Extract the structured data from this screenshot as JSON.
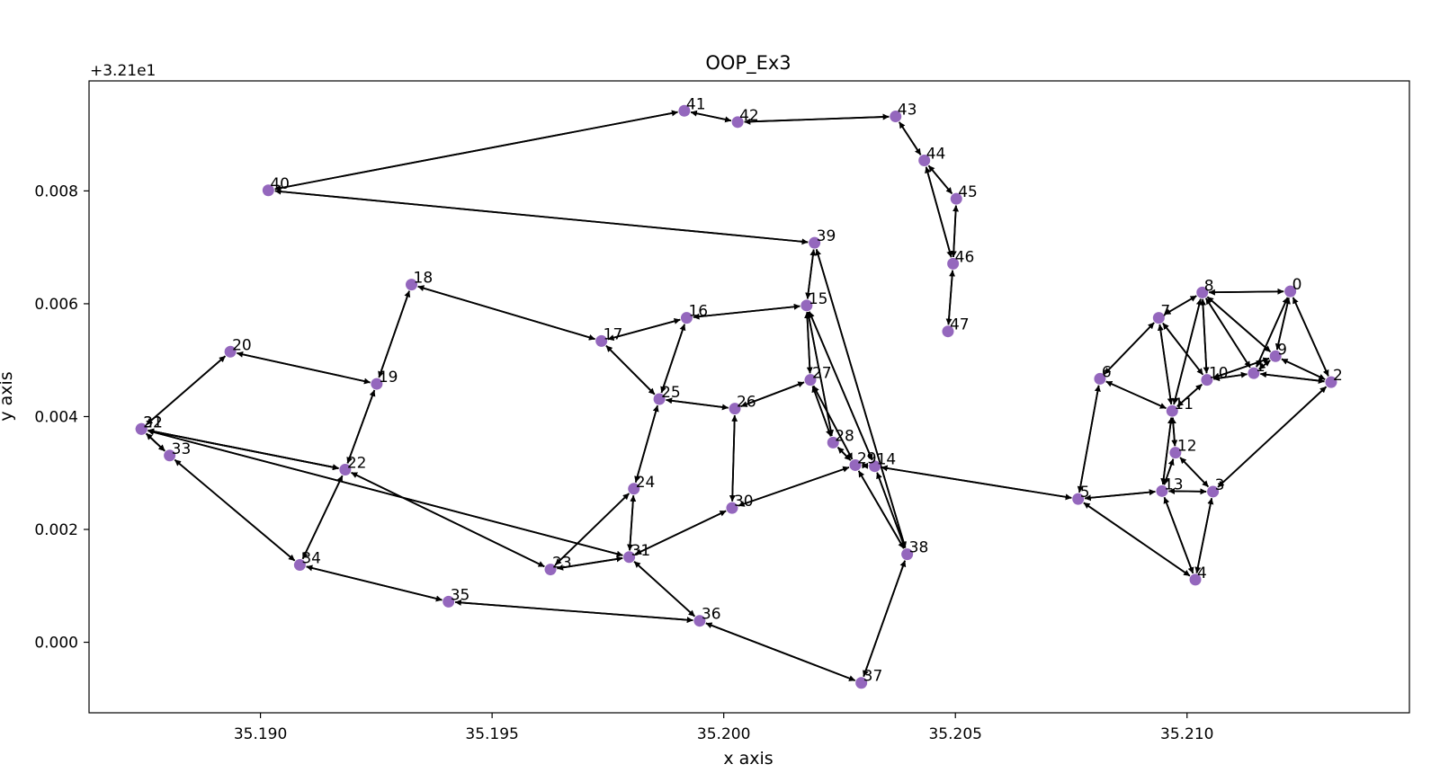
{
  "chart_data": {
    "type": "graph",
    "title": "OOP_Ex3",
    "xlabel": "x axis",
    "ylabel": "y axis",
    "y_offset_label": "+3.21e1",
    "xlim": [
      35.1863,
      35.2148
    ],
    "ylim": [
      -0.00125,
      0.00995
    ],
    "x_ticks": [
      35.19,
      35.195,
      35.2,
      35.205,
      35.21
    ],
    "x_tick_labels": [
      "35.190",
      "35.195",
      "35.200",
      "35.205",
      "35.210"
    ],
    "y_ticks": [
      0.0,
      0.002,
      0.004,
      0.006,
      0.008
    ],
    "y_tick_labels": [
      "0.000",
      "0.002",
      "0.004",
      "0.006",
      "0.008"
    ],
    "grid": false,
    "node_color": "#9467bd",
    "edge_color": "#000000",
    "nodes": [
      {
        "id": 0,
        "label": "0",
        "x": 35.21223,
        "y": 0.00622
      },
      {
        "id": 1,
        "label": "1",
        "x": 35.21144,
        "y": 0.00477
      },
      {
        "id": 2,
        "label": "2",
        "x": 35.21311,
        "y": 0.00461
      },
      {
        "id": 3,
        "label": "3",
        "x": 35.21056,
        "y": 0.00267
      },
      {
        "id": 4,
        "label": "4",
        "x": 35.21018,
        "y": 0.00111
      },
      {
        "id": 5,
        "label": "5",
        "x": 35.20765,
        "y": 0.00254
      },
      {
        "id": 6,
        "label": "6",
        "x": 35.20812,
        "y": 0.00467
      },
      {
        "id": 7,
        "label": "7",
        "x": 35.20939,
        "y": 0.00575
      },
      {
        "id": 8,
        "label": "8",
        "x": 35.21033,
        "y": 0.0062
      },
      {
        "id": 9,
        "label": "9",
        "x": 35.21191,
        "y": 0.00507
      },
      {
        "id": 10,
        "label": "10",
        "x": 35.21043,
        "y": 0.00465
      },
      {
        "id": 11,
        "label": "11",
        "x": 35.20968,
        "y": 0.0041
      },
      {
        "id": 12,
        "label": "12",
        "x": 35.20975,
        "y": 0.00336
      },
      {
        "id": 13,
        "label": "13",
        "x": 35.20946,
        "y": 0.00268
      },
      {
        "id": 14,
        "label": "14",
        "x": 35.20326,
        "y": 0.00312
      },
      {
        "id": 15,
        "label": "15",
        "x": 35.20179,
        "y": 0.00597
      },
      {
        "id": 16,
        "label": "16",
        "x": 35.1992,
        "y": 0.00575
      },
      {
        "id": 17,
        "label": "17",
        "x": 35.19736,
        "y": 0.00534
      },
      {
        "id": 18,
        "label": "18",
        "x": 35.19326,
        "y": 0.00634
      },
      {
        "id": 19,
        "label": "19",
        "x": 35.19251,
        "y": 0.00458
      },
      {
        "id": 20,
        "label": "20",
        "x": 35.18935,
        "y": 0.00515
      },
      {
        "id": 21,
        "label": "21",
        "x": 35.18743,
        "y": 0.00378
      },
      {
        "id": 22,
        "label": "22",
        "x": 35.19183,
        "y": 0.00306
      },
      {
        "id": 23,
        "label": "23",
        "x": 35.19626,
        "y": 0.00129
      },
      {
        "id": 24,
        "label": "24",
        "x": 35.19806,
        "y": 0.00272
      },
      {
        "id": 25,
        "label": "25",
        "x": 35.19861,
        "y": 0.00431
      },
      {
        "id": 26,
        "label": "26",
        "x": 35.20024,
        "y": 0.00414
      },
      {
        "id": 27,
        "label": "27",
        "x": 35.20187,
        "y": 0.00465
      },
      {
        "id": 28,
        "label": "28",
        "x": 35.20236,
        "y": 0.00354
      },
      {
        "id": 29,
        "label": "29",
        "x": 35.20284,
        "y": 0.00314
      },
      {
        "id": 30,
        "label": "30",
        "x": 35.20018,
        "y": 0.00238
      },
      {
        "id": 31,
        "label": "31",
        "x": 35.19796,
        "y": 0.00151
      },
      {
        "id": 32,
        "label": "32",
        "x": 35.18743,
        "y": 0.00378
      },
      {
        "id": 33,
        "label": "33",
        "x": 35.18804,
        "y": 0.00331
      },
      {
        "id": 34,
        "label": "34",
        "x": 35.19085,
        "y": 0.00137
      },
      {
        "id": 35,
        "label": "35",
        "x": 35.19406,
        "y": 0.00072
      },
      {
        "id": 36,
        "label": "36",
        "x": 35.19948,
        "y": 0.00038
      },
      {
        "id": 37,
        "label": "37",
        "x": 35.20297,
        "y": -0.00072
      },
      {
        "id": 38,
        "label": "38",
        "x": 35.20396,
        "y": 0.00156
      },
      {
        "id": 39,
        "label": "39",
        "x": 35.20196,
        "y": 0.00708
      },
      {
        "id": 40,
        "label": "40",
        "x": 35.19017,
        "y": 0.00801
      },
      {
        "id": 41,
        "label": "41",
        "x": 35.19915,
        "y": 0.00942
      },
      {
        "id": 42,
        "label": "42",
        "x": 35.2003,
        "y": 0.00922
      },
      {
        "id": 43,
        "label": "43",
        "x": 35.20371,
        "y": 0.00932
      },
      {
        "id": 44,
        "label": "44",
        "x": 35.20433,
        "y": 0.00854
      },
      {
        "id": 45,
        "label": "45",
        "x": 35.20502,
        "y": 0.00786
      },
      {
        "id": 46,
        "label": "46",
        "x": 35.20495,
        "y": 0.00671
      },
      {
        "id": 47,
        "label": "47",
        "x": 35.20484,
        "y": 0.00551
      }
    ],
    "edges": [
      [
        0,
        1
      ],
      [
        1,
        0
      ],
      [
        0,
        2
      ],
      [
        2,
        0
      ],
      [
        0,
        8
      ],
      [
        8,
        0
      ],
      [
        0,
        9
      ],
      [
        9,
        0
      ],
      [
        1,
        2
      ],
      [
        2,
        1
      ],
      [
        1,
        9
      ],
      [
        9,
        1
      ],
      [
        1,
        10
      ],
      [
        10,
        1
      ],
      [
        1,
        8
      ],
      [
        8,
        1
      ],
      [
        2,
        3
      ],
      [
        3,
        2
      ],
      [
        2,
        9
      ],
      [
        9,
        2
      ],
      [
        3,
        4
      ],
      [
        4,
        3
      ],
      [
        3,
        13
      ],
      [
        13,
        3
      ],
      [
        3,
        12
      ],
      [
        12,
        3
      ],
      [
        4,
        5
      ],
      [
        5,
        4
      ],
      [
        4,
        13
      ],
      [
        13,
        4
      ],
      [
        5,
        6
      ],
      [
        6,
        5
      ],
      [
        5,
        13
      ],
      [
        13,
        5
      ],
      [
        5,
        14
      ],
      [
        14,
        5
      ],
      [
        6,
        7
      ],
      [
        7,
        6
      ],
      [
        6,
        11
      ],
      [
        11,
        6
      ],
      [
        7,
        8
      ],
      [
        8,
        7
      ],
      [
        7,
        11
      ],
      [
        11,
        7
      ],
      [
        7,
        10
      ],
      [
        10,
        7
      ],
      [
        8,
        9
      ],
      [
        9,
        8
      ],
      [
        8,
        10
      ],
      [
        10,
        8
      ],
      [
        8,
        11
      ],
      [
        11,
        8
      ],
      [
        9,
        10
      ],
      [
        10,
        9
      ],
      [
        10,
        11
      ],
      [
        11,
        10
      ],
      [
        11,
        12
      ],
      [
        12,
        11
      ],
      [
        11,
        13
      ],
      [
        13,
        11
      ],
      [
        12,
        13
      ],
      [
        13,
        12
      ],
      [
        14,
        15
      ],
      [
        15,
        14
      ],
      [
        14,
        29
      ],
      [
        29,
        14
      ],
      [
        14,
        38
      ],
      [
        38,
        14
      ],
      [
        15,
        16
      ],
      [
        16,
        15
      ],
      [
        15,
        27
      ],
      [
        27,
        15
      ],
      [
        15,
        39
      ],
      [
        39,
        15
      ],
      [
        15,
        28
      ],
      [
        28,
        15
      ],
      [
        16,
        17
      ],
      [
        17,
        16
      ],
      [
        16,
        25
      ],
      [
        25,
        16
      ],
      [
        17,
        18
      ],
      [
        18,
        17
      ],
      [
        17,
        25
      ],
      [
        25,
        17
      ],
      [
        18,
        19
      ],
      [
        19,
        18
      ],
      [
        19,
        20
      ],
      [
        20,
        19
      ],
      [
        19,
        22
      ],
      [
        22,
        19
      ],
      [
        20,
        21
      ],
      [
        21,
        20
      ],
      [
        21,
        32
      ],
      [
        32,
        21
      ],
      [
        21,
        33
      ],
      [
        33,
        21
      ],
      [
        22,
        21
      ],
      [
        21,
        22
      ],
      [
        22,
        23
      ],
      [
        23,
        22
      ],
      [
        22,
        34
      ],
      [
        34,
        22
      ],
      [
        22,
        32
      ],
      [
        32,
        22
      ],
      [
        23,
        24
      ],
      [
        24,
        23
      ],
      [
        23,
        31
      ],
      [
        31,
        23
      ],
      [
        24,
        25
      ],
      [
        25,
        24
      ],
      [
        24,
        31
      ],
      [
        31,
        24
      ],
      [
        25,
        26
      ],
      [
        26,
        25
      ],
      [
        26,
        27
      ],
      [
        27,
        26
      ],
      [
        26,
        30
      ],
      [
        30,
        26
      ],
      [
        27,
        28
      ],
      [
        28,
        27
      ],
      [
        27,
        29
      ],
      [
        29,
        27
      ],
      [
        28,
        29
      ],
      [
        29,
        28
      ],
      [
        29,
        30
      ],
      [
        30,
        29
      ],
      [
        29,
        38
      ],
      [
        38,
        29
      ],
      [
        30,
        31
      ],
      [
        31,
        30
      ],
      [
        31,
        32
      ],
      [
        32,
        31
      ],
      [
        31,
        36
      ],
      [
        36,
        31
      ],
      [
        32,
        33
      ],
      [
        33,
        32
      ],
      [
        33,
        34
      ],
      [
        34,
        33
      ],
      [
        34,
        35
      ],
      [
        35,
        34
      ],
      [
        35,
        36
      ],
      [
        36,
        35
      ],
      [
        36,
        37
      ],
      [
        37,
        36
      ],
      [
        37,
        38
      ],
      [
        38,
        37
      ],
      [
        38,
        39
      ],
      [
        39,
        38
      ],
      [
        39,
        40
      ],
      [
        40,
        39
      ],
      [
        40,
        41
      ],
      [
        41,
        40
      ],
      [
        41,
        42
      ],
      [
        42,
        41
      ],
      [
        42,
        43
      ],
      [
        43,
        42
      ],
      [
        43,
        44
      ],
      [
        44,
        43
      ],
      [
        44,
        45
      ],
      [
        45,
        44
      ],
      [
        44,
        46
      ],
      [
        46,
        44
      ],
      [
        45,
        46
      ],
      [
        46,
        45
      ],
      [
        46,
        47
      ],
      [
        47,
        46
      ]
    ]
  }
}
